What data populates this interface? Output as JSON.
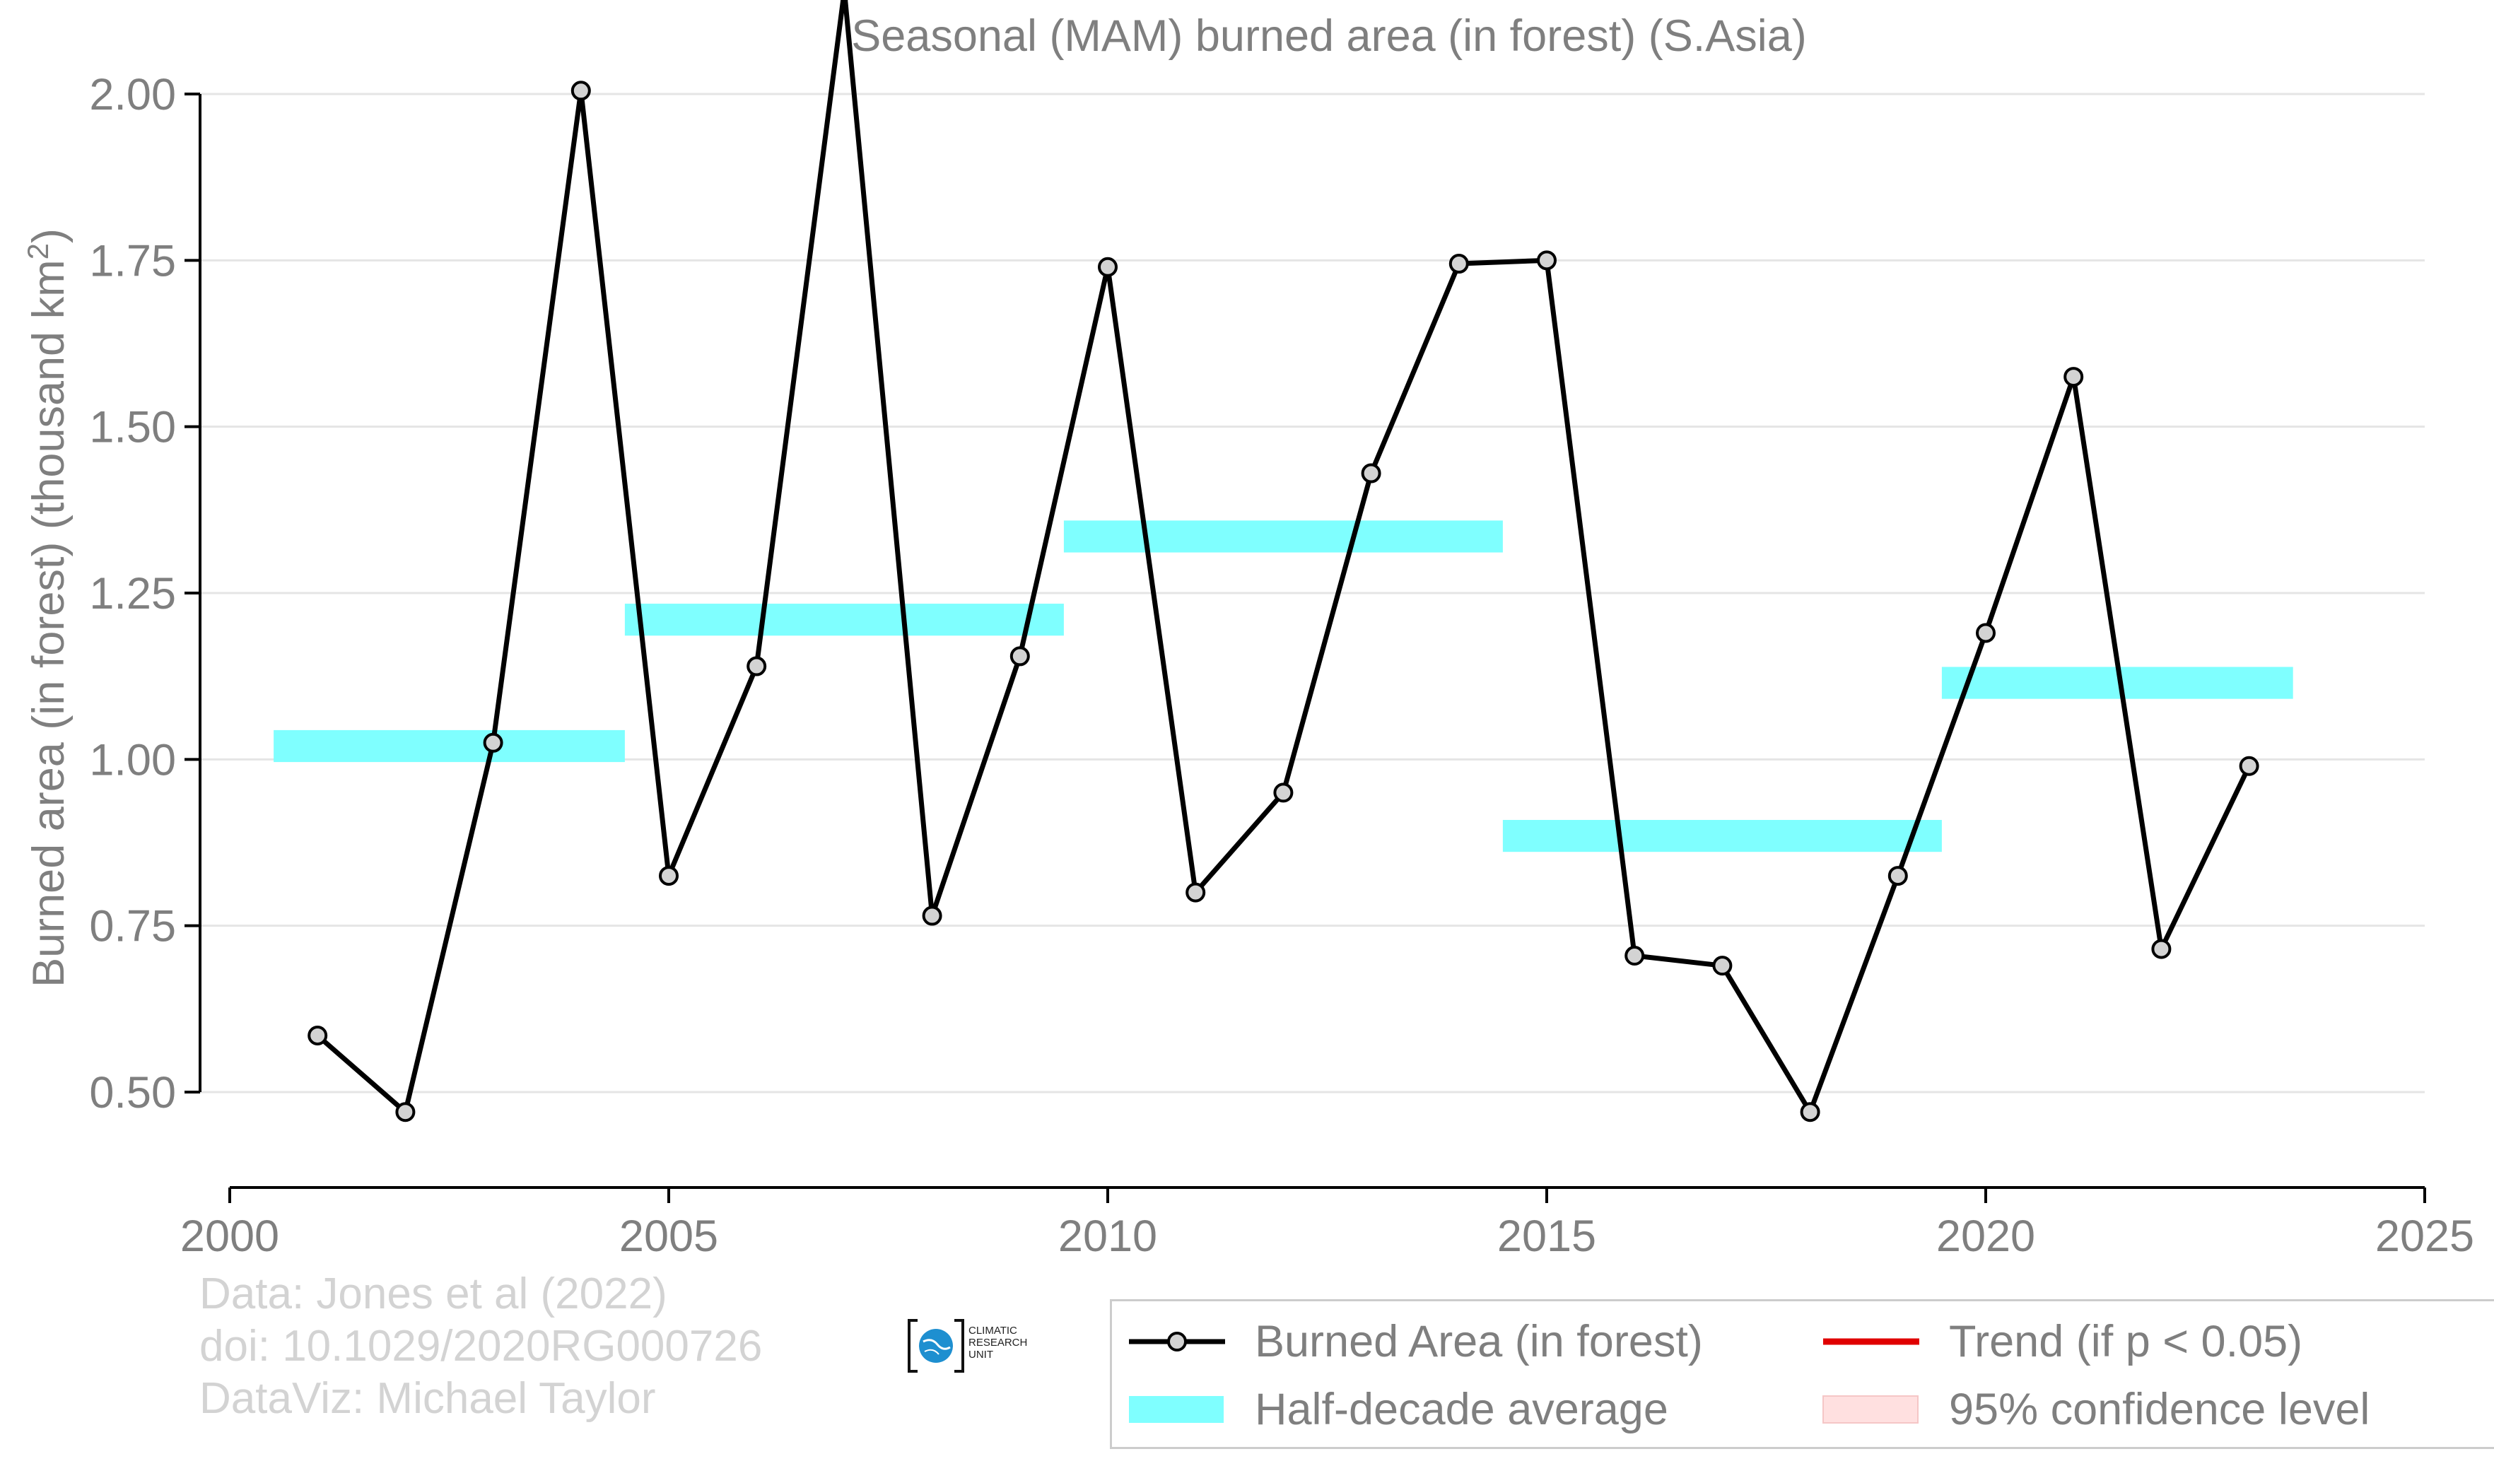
{
  "chart_data": {
    "type": "line",
    "title": "Seasonal (MAM) burned area (in forest) (S.Asia)",
    "xlabel": "",
    "ylabel": "Burned area (in forest) (thousand km",
    "ylabel_sup": "2",
    "ylabel_close": ")",
    "xlim": [
      2000,
      2025
    ],
    "ylim": [
      0.33,
      2.2
    ],
    "xticks": [
      2000,
      2005,
      2010,
      2015,
      2020,
      2025
    ],
    "yticks": [
      0.5,
      0.75,
      1.0,
      1.25,
      1.5,
      1.75,
      2.0
    ],
    "ytick_labels": [
      "0.50",
      "0.75",
      "1.00",
      "1.25",
      "1.50",
      "1.75",
      "2.00"
    ],
    "grid": "horizontal",
    "legend_position": "bottom-right",
    "series": [
      {
        "name": "Burned Area (in forest)",
        "color": "#000000",
        "x": [
          2001,
          2002,
          2003,
          2004,
          2005,
          2006,
          2007,
          2008,
          2009,
          2010,
          2011,
          2012,
          2013,
          2014,
          2015,
          2016,
          2017,
          2018,
          2019,
          2020,
          2021,
          2022,
          2023
        ],
        "y": [
          0.585,
          0.47,
          1.025,
          2.005,
          0.825,
          1.14,
          2.155,
          0.765,
          1.155,
          1.74,
          0.8,
          0.95,
          1.43,
          1.745,
          1.75,
          0.705,
          0.69,
          0.47,
          0.825,
          1.19,
          1.575,
          0.715,
          0.99
        ]
      }
    ],
    "half_decade_averages": [
      {
        "x_start": 2000.5,
        "x_end": 2004.5,
        "value": 1.02
      },
      {
        "x_start": 2004.5,
        "x_end": 2009.5,
        "value": 1.21
      },
      {
        "x_start": 2009.5,
        "x_end": 2014.5,
        "value": 1.335
      },
      {
        "x_start": 2014.5,
        "x_end": 2019.5,
        "value": 0.885
      },
      {
        "x_start": 2019.5,
        "x_end": 2023.5,
        "value": 1.115
      }
    ],
    "colors": {
      "line": "#000000",
      "marker_fill": "#d3d3d3",
      "half_decade": "#7fffff",
      "trend": "#e00000",
      "confidence": "#ffe0e0",
      "axis_text": "#7f7f7f",
      "grid": "#e5e5e5"
    }
  },
  "legend": {
    "burned_area": "Burned Area (in forest)",
    "half_decade": "Half-decade average",
    "trend": "Trend (if p < 0.05)",
    "confidence": "95% confidence level"
  },
  "credits": {
    "line1": "Data: Jones et al (2022)",
    "line2": "doi: 10.1029/2020RG000726",
    "line3": "DataViz: Michael Taylor"
  },
  "logo": {
    "line1": "CLIMATIC",
    "line2": "RESEARCH",
    "line3": "UNIT"
  }
}
